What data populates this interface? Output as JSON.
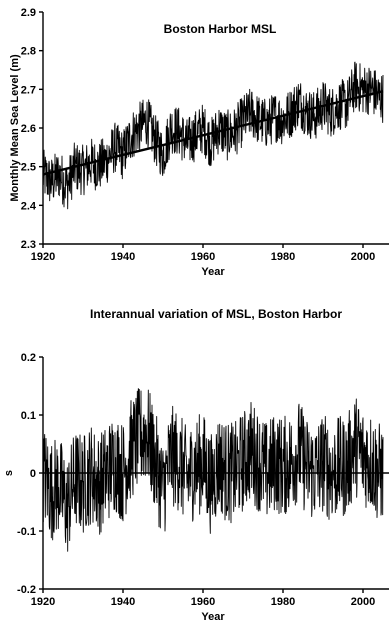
{
  "chart_data": [
    {
      "type": "line",
      "title": "Boston Harbor MSL",
      "xlabel": "Year",
      "ylabel": "Monthly Mean Sea Level (m)",
      "xlim": [
        1920,
        2005
      ],
      "ylim": [
        2.3,
        2.9
      ],
      "xticks": [
        1920,
        1940,
        1960,
        1980,
        2000
      ],
      "yticks": [
        2.3,
        2.4,
        2.5,
        2.6,
        2.7,
        2.8,
        2.9
      ],
      "series": [
        {
          "x": [
            1920,
            1922,
            1924,
            1926,
            1928,
            1930,
            1932,
            1934,
            1936,
            1938,
            1940,
            1942,
            1944,
            1946,
            1948,
            1950,
            1952,
            1954,
            1956,
            1958,
            1960,
            1962,
            1964,
            1966,
            1968,
            1970,
            1972,
            1974,
            1976,
            1978,
            1980,
            1982,
            1984,
            1986,
            1988,
            1990,
            1992,
            1994,
            1996,
            1998,
            2000,
            2002,
            2004
          ],
          "values": [
            2.48,
            2.46,
            2.48,
            2.45,
            2.5,
            2.49,
            2.51,
            2.5,
            2.52,
            2.55,
            2.53,
            2.58,
            2.6,
            2.62,
            2.57,
            2.53,
            2.6,
            2.59,
            2.56,
            2.58,
            2.6,
            2.56,
            2.6,
            2.58,
            2.59,
            2.62,
            2.64,
            2.62,
            2.61,
            2.63,
            2.62,
            2.64,
            2.67,
            2.64,
            2.63,
            2.66,
            2.64,
            2.66,
            2.66,
            2.71,
            2.7,
            2.7,
            2.68
          ]
        },
        {
          "x": [
            1920,
            2005
          ],
          "values": [
            2.48,
            2.695
          ]
        }
      ]
    },
    {
      "type": "line",
      "title": "Interannual variation of MSL, Boston Harbor",
      "xlabel": "Year",
      "ylabel": "s",
      "xlim": [
        1920,
        2005
      ],
      "ylim": [
        -0.2,
        0.2
      ],
      "xticks": [
        1920,
        1940,
        1960,
        1980,
        2000
      ],
      "yticks": [
        -0.2,
        -0.1,
        0,
        0.1,
        0.2
      ],
      "yticklabels": [
        "-0.2",
        "-0.1",
        "0",
        "0.1",
        "0.2"
      ],
      "series": [
        {
          "x": [
            1920,
            1922,
            1924,
            1926,
            1928,
            1930,
            1932,
            1934,
            1936,
            1938,
            1940,
            1942,
            1944,
            1946,
            1948,
            1950,
            1952,
            1954,
            1956,
            1958,
            1960,
            1962,
            1964,
            1966,
            1968,
            1970,
            1972,
            1974,
            1976,
            1978,
            1980,
            1982,
            1984,
            1986,
            1988,
            1990,
            1992,
            1994,
            1996,
            1998,
            2000,
            2002,
            2004
          ],
          "values": [
            0.0,
            -0.03,
            -0.02,
            -0.06,
            -0.01,
            -0.02,
            0.0,
            -0.02,
            0.0,
            0.02,
            0.0,
            0.04,
            0.06,
            0.07,
            0.02,
            -0.03,
            0.03,
            0.02,
            -0.01,
            0.01,
            0.02,
            -0.02,
            0.02,
            0.0,
            0.0,
            0.02,
            0.04,
            0.02,
            0.0,
            0.02,
            0.01,
            0.02,
            0.04,
            0.01,
            0.0,
            0.02,
            0.0,
            0.01,
            0.01,
            0.05,
            0.03,
            0.02,
            0.0
          ]
        }
      ]
    }
  ]
}
